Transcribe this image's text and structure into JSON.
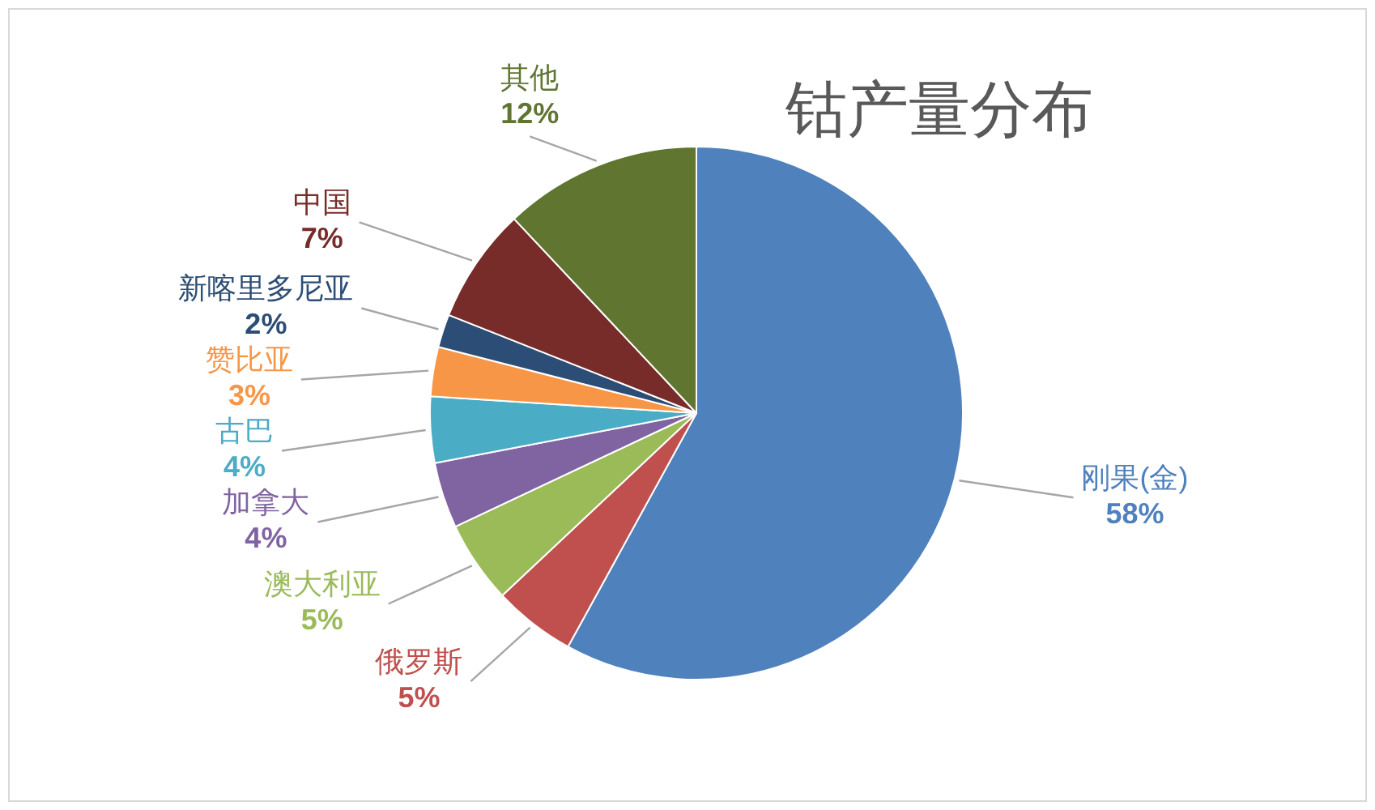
{
  "chart_data": {
    "type": "pie",
    "title": "钴产量分布",
    "categories": [
      "刚果(金)",
      "俄罗斯",
      "澳大利亚",
      "加拿大",
      "古巴",
      "赞比亚",
      "新喀里多尼亚",
      "中国",
      "其他"
    ],
    "values": [
      58,
      5,
      5,
      4,
      4,
      3,
      2,
      7,
      12
    ],
    "value_labels": [
      "58%",
      "5%",
      "5%",
      "4%",
      "4%",
      "3%",
      "2%",
      "7%",
      "12%"
    ],
    "colors": [
      "#4f81bd",
      "#c0504d",
      "#9bbb59",
      "#8064a2",
      "#4bacc6",
      "#f79646",
      "#2c4d75",
      "#772c2a",
      "#5f7530"
    ]
  }
}
